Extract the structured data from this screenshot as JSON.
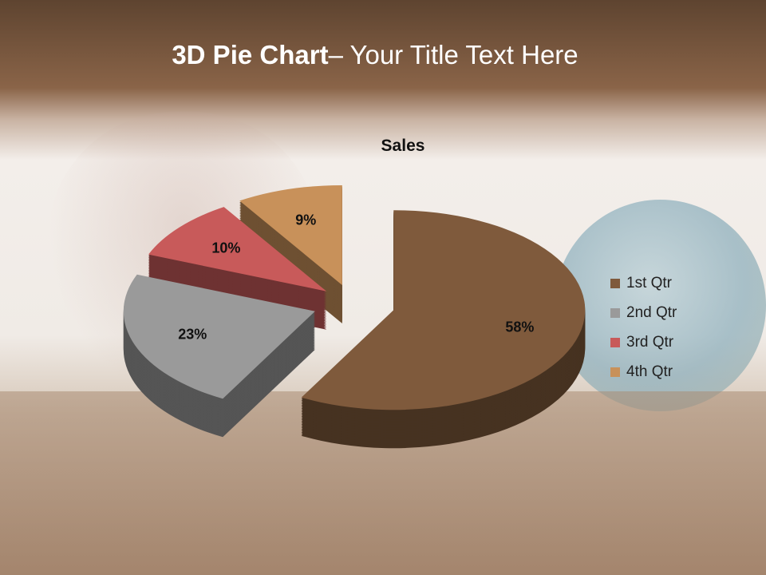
{
  "slide": {
    "title_bold": "3D Pie Chart",
    "title_rest": "– Your Title Text Here"
  },
  "chart_data": {
    "type": "pie",
    "variant": "3d-exploded",
    "title": "Sales",
    "categories": [
      "1st Qtr",
      "2nd Qtr",
      "3rd Qtr",
      "4th Qtr"
    ],
    "values": [
      58,
      23,
      10,
      9
    ],
    "data_labels": [
      "58%",
      "23%",
      "10%",
      "9%"
    ],
    "colors": [
      "#7f5a3c",
      "#9a9a9a",
      "#c85a5a",
      "#c8915a"
    ],
    "legend_position": "right"
  }
}
